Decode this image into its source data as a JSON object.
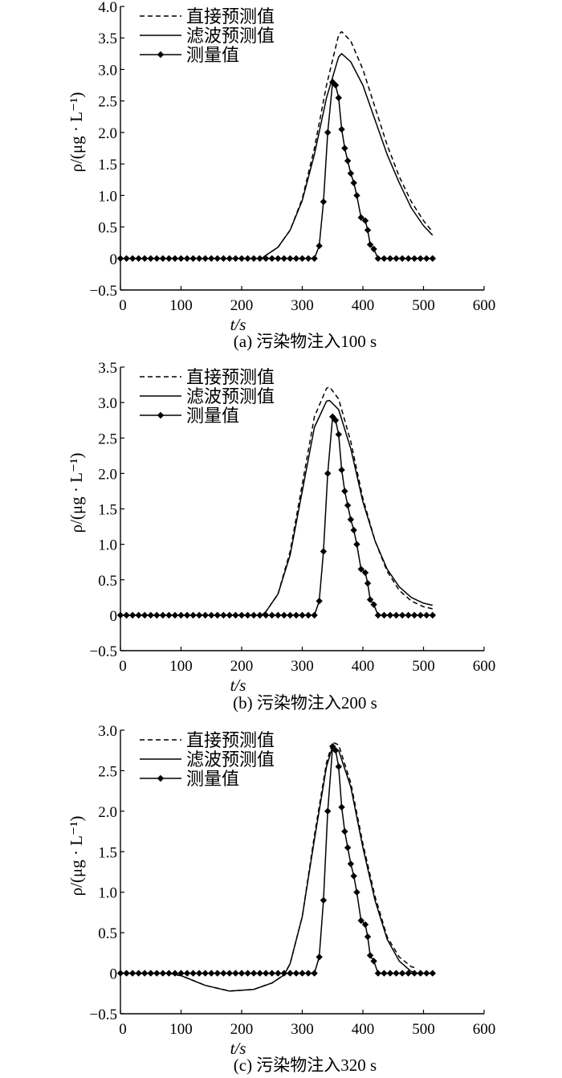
{
  "legend_labels": [
    "直接预测值",
    "滤波预测值",
    "测量值"
  ],
  "chart_data": [
    {
      "type": "line",
      "caption": "(a) 污染物注入100 s",
      "xlabel": "t/s",
      "ylabel": "ρ/(μg · L⁻¹)",
      "xlim": [
        0,
        600
      ],
      "ylim": [
        -0.5,
        4.0
      ],
      "xticks": [
        "0",
        "100",
        "200",
        "300",
        "400",
        "500",
        "600"
      ],
      "yticks": [
        "4.0",
        "3.5",
        "3.0",
        "2.5",
        "2.0",
        "1.5",
        "1.0",
        "0.5",
        "0",
        "−0.5"
      ],
      "legend": "top-left",
      "series": [
        {
          "name": "直接预测值",
          "style": "dashed",
          "x": [
            0,
            233,
            240,
            260,
            280,
            300,
            320,
            340,
            360,
            365,
            380,
            400,
            420,
            440,
            460,
            480,
            500,
            515
          ],
          "y": [
            0,
            0,
            0.05,
            0.18,
            0.45,
            0.95,
            1.75,
            2.75,
            3.55,
            3.6,
            3.45,
            3.0,
            2.4,
            1.8,
            1.3,
            0.9,
            0.6,
            0.42
          ]
        },
        {
          "name": "滤波预测值",
          "style": "solid",
          "x": [
            0,
            233,
            240,
            260,
            280,
            300,
            320,
            340,
            360,
            365,
            380,
            400,
            420,
            440,
            460,
            480,
            500,
            515
          ],
          "y": [
            0,
            0,
            0.05,
            0.18,
            0.45,
            0.92,
            1.65,
            2.55,
            3.2,
            3.25,
            3.12,
            2.75,
            2.2,
            1.65,
            1.2,
            0.8,
            0.52,
            0.37
          ]
        },
        {
          "name": "测量值",
          "style": "marker",
          "x": [
            0,
            10,
            20,
            30,
            40,
            50,
            60,
            70,
            80,
            90,
            100,
            110,
            120,
            130,
            140,
            150,
            160,
            170,
            180,
            190,
            200,
            210,
            220,
            230,
            240,
            250,
            260,
            270,
            280,
            290,
            300,
            310,
            320,
            328,
            335,
            342,
            350,
            355,
            360,
            365,
            370,
            375,
            380,
            385,
            390,
            397,
            404,
            408,
            412,
            418,
            425,
            435,
            445,
            455,
            465,
            475,
            485,
            495,
            505,
            515
          ],
          "y": [
            0,
            0,
            0,
            0,
            0,
            0,
            0,
            0,
            0,
            0,
            0,
            0,
            0,
            0,
            0,
            0,
            0,
            0,
            0,
            0,
            0,
            0,
            0,
            0,
            0,
            0,
            0,
            0,
            0,
            0,
            0,
            0,
            0,
            0.2,
            0.9,
            2.0,
            2.8,
            2.75,
            2.55,
            2.05,
            1.75,
            1.55,
            1.35,
            1.2,
            1.0,
            0.65,
            0.6,
            0.45,
            0.22,
            0.15,
            0,
            0,
            0,
            0,
            0,
            0,
            0,
            0,
            0,
            0
          ]
        }
      ]
    },
    {
      "type": "line",
      "caption": "(b) 污染物注入200 s",
      "xlabel": "t/s",
      "ylabel": "ρ/(μg · L⁻¹)",
      "xlim": [
        0,
        600
      ],
      "ylim": [
        -0.5,
        3.5
      ],
      "xticks": [
        "0",
        "100",
        "200",
        "300",
        "400",
        "500",
        "600"
      ],
      "yticks": [
        "3.5",
        "3.0",
        "2.5",
        "2.0",
        "1.5",
        "1.0",
        "0.5",
        "0",
        "−0.5"
      ],
      "legend": "top-left",
      "series": [
        {
          "name": "直接预测值",
          "style": "dashed",
          "x": [
            0,
            233,
            240,
            260,
            280,
            300,
            320,
            340,
            345,
            360,
            380,
            400,
            420,
            440,
            460,
            480,
            500,
            515
          ],
          "y": [
            0,
            0,
            0.05,
            0.3,
            0.9,
            1.85,
            2.8,
            3.2,
            3.22,
            3.05,
            2.45,
            1.65,
            1.05,
            0.62,
            0.35,
            0.2,
            0.12,
            0.09
          ]
        },
        {
          "name": "滤波预测值",
          "style": "solid",
          "x": [
            0,
            233,
            240,
            260,
            280,
            300,
            320,
            340,
            345,
            360,
            380,
            400,
            420,
            440,
            460,
            480,
            500,
            515
          ],
          "y": [
            0,
            0,
            0.05,
            0.3,
            0.85,
            1.75,
            2.65,
            3.02,
            3.03,
            2.9,
            2.35,
            1.6,
            1.05,
            0.65,
            0.4,
            0.25,
            0.17,
            0.14
          ]
        },
        {
          "name": "测量值",
          "style": "marker",
          "x": [
            0,
            10,
            20,
            30,
            40,
            50,
            60,
            70,
            80,
            90,
            100,
            110,
            120,
            130,
            140,
            150,
            160,
            170,
            180,
            190,
            200,
            210,
            220,
            230,
            240,
            250,
            260,
            270,
            280,
            290,
            300,
            310,
            320,
            328,
            335,
            342,
            350,
            355,
            360,
            365,
            370,
            375,
            380,
            385,
            390,
            397,
            404,
            408,
            412,
            418,
            425,
            435,
            445,
            455,
            465,
            475,
            485,
            495,
            505,
            515
          ],
          "y": [
            0,
            0,
            0,
            0,
            0,
            0,
            0,
            0,
            0,
            0,
            0,
            0,
            0,
            0,
            0,
            0,
            0,
            0,
            0,
            0,
            0,
            0,
            0,
            0,
            0,
            0,
            0,
            0,
            0,
            0,
            0,
            0,
            0,
            0.2,
            0.9,
            2.0,
            2.8,
            2.75,
            2.55,
            2.05,
            1.75,
            1.55,
            1.35,
            1.2,
            1.0,
            0.65,
            0.6,
            0.45,
            0.22,
            0.15,
            0,
            0,
            0,
            0,
            0,
            0,
            0,
            0,
            0,
            0
          ]
        }
      ]
    },
    {
      "type": "line",
      "caption": "(c) 污染物注入320 s",
      "xlabel": "t/s",
      "ylabel": "ρ/(μg · L⁻¹)",
      "xlim": [
        0,
        600
      ],
      "ylim": [
        -0.5,
        3.0
      ],
      "xticks": [
        "0",
        "100",
        "200",
        "300",
        "400",
        "500",
        "600"
      ],
      "yticks": [
        "3.0",
        "2.5",
        "2.0",
        "1.5",
        "1.0",
        "0.5",
        "0",
        "−0.5"
      ],
      "legend": "top-left",
      "series": [
        {
          "name": "直接预测值",
          "style": "dashed",
          "x": [
            0,
            80,
            100,
            140,
            180,
            220,
            250,
            270,
            280,
            300,
            320,
            340,
            350,
            360,
            380,
            400,
            420,
            440,
            460,
            480,
            490
          ],
          "y": [
            0,
            0,
            -0.03,
            -0.15,
            -0.22,
            -0.2,
            -0.12,
            -0.02,
            0.12,
            0.7,
            1.7,
            2.6,
            2.85,
            2.82,
            2.35,
            1.6,
            0.95,
            0.45,
            0.2,
            0.08,
            0.06
          ]
        },
        {
          "name": "滤波预测值",
          "style": "solid",
          "x": [
            0,
            80,
            100,
            140,
            180,
            220,
            250,
            270,
            280,
            300,
            320,
            340,
            350,
            360,
            380,
            400,
            420,
            440,
            460,
            480,
            490
          ],
          "y": [
            0,
            0,
            -0.03,
            -0.15,
            -0.22,
            -0.2,
            -0.12,
            -0.02,
            0.12,
            0.7,
            1.65,
            2.55,
            2.8,
            2.75,
            2.3,
            1.55,
            0.9,
            0.42,
            0.15,
            0.02,
            0
          ]
        },
        {
          "name": "测量值",
          "style": "marker",
          "x": [
            0,
            10,
            20,
            30,
            40,
            50,
            60,
            70,
            80,
            90,
            100,
            110,
            120,
            130,
            140,
            150,
            160,
            170,
            180,
            190,
            200,
            210,
            220,
            230,
            240,
            250,
            260,
            270,
            280,
            290,
            300,
            310,
            320,
            328,
            335,
            342,
            350,
            355,
            360,
            365,
            370,
            375,
            380,
            385,
            390,
            397,
            404,
            408,
            412,
            418,
            425,
            435,
            445,
            455,
            465,
            475,
            485,
            495,
            505,
            515
          ],
          "y": [
            0,
            0,
            0,
            0,
            0,
            0,
            0,
            0,
            0,
            0,
            0,
            0,
            0,
            0,
            0,
            0,
            0,
            0,
            0,
            0,
            0,
            0,
            0,
            0,
            0,
            0,
            0,
            0,
            0,
            0,
            0,
            0,
            0,
            0.2,
            0.9,
            2.0,
            2.8,
            2.75,
            2.55,
            2.05,
            1.75,
            1.55,
            1.35,
            1.2,
            1.0,
            0.65,
            0.6,
            0.45,
            0.22,
            0.15,
            0,
            0,
            0,
            0,
            0,
            0,
            0,
            0,
            0,
            0
          ]
        }
      ]
    }
  ]
}
